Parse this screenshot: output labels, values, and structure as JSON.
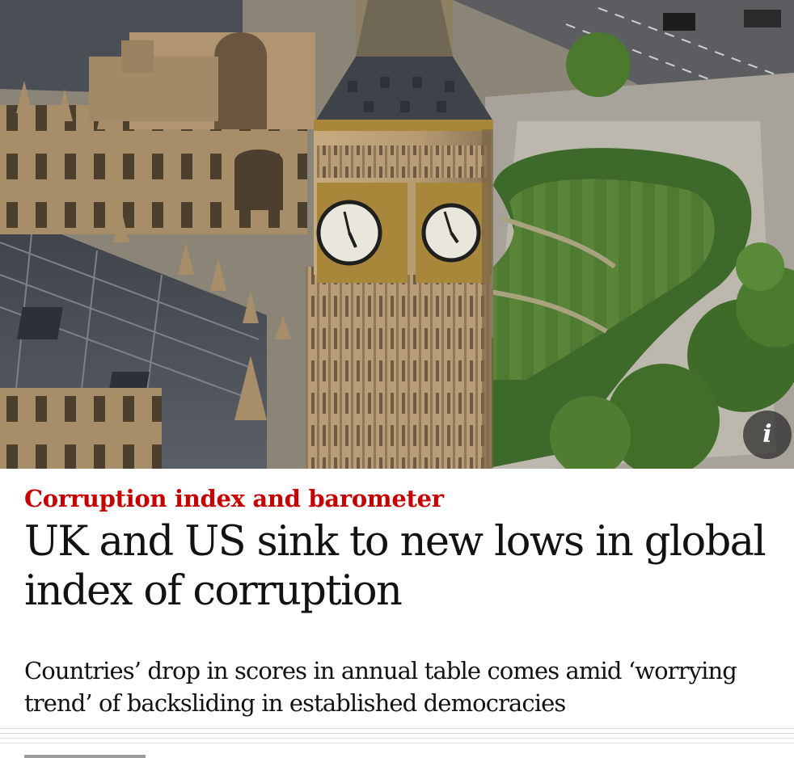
{
  "article": {
    "kicker": "Corruption index and barometer",
    "headline": "UK and US sink to new lows in global index of corruption",
    "standfirst": "Countries’ drop in scores in annual table comes amid ‘worrying trend’ of backsliding in established democracies"
  },
  "hero": {
    "info_label": "i",
    "colors": {
      "stone": "#b59a73",
      "roof": "#4a4e55",
      "grass": "#4f7a32",
      "hedge": "#3d6a2a",
      "gold": "#a8873a",
      "clock_face": "#e9e6dc"
    }
  },
  "accent": {
    "kicker_color": "#c70000",
    "text_color": "#121212"
  }
}
